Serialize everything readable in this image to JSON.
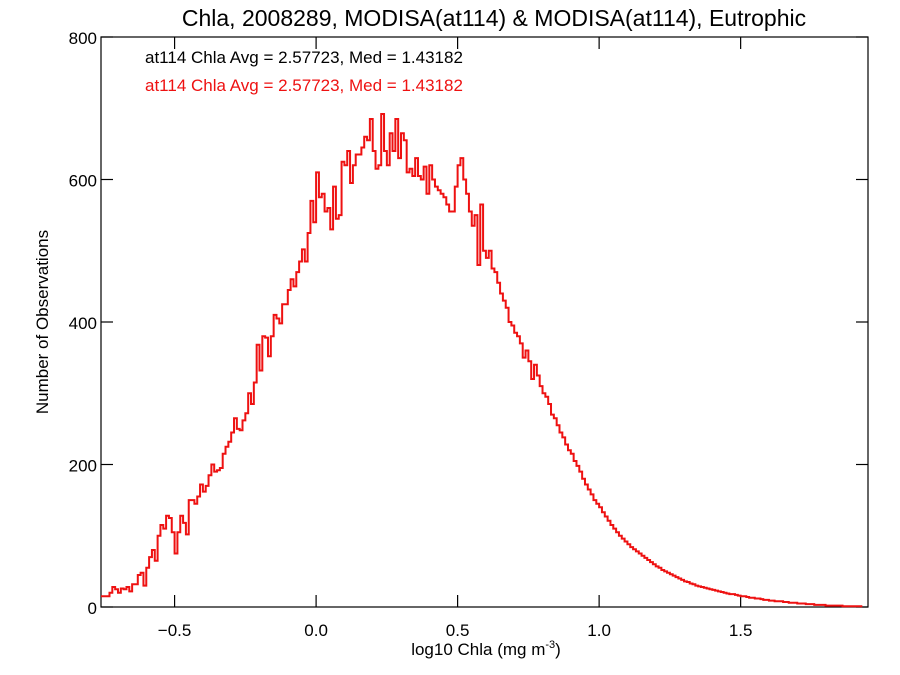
{
  "chart_data": {
    "type": "histogram",
    "title": "Chla, 2008289, MODISA(at114) & MODISA(at114), Eutrophic",
    "xlabel": "log10 Chla (mg m",
    "xlabel_sup": "-3",
    "xlabel_end": ")",
    "ylabel": "Number of Observations",
    "xlim": [
      -0.76,
      1.95
    ],
    "ylim": [
      0,
      800
    ],
    "xticks": [
      -0.5,
      0.0,
      0.5,
      1.0,
      1.5
    ],
    "xtick_labels": [
      "−0.5",
      "0.0",
      "0.5",
      "1.0",
      "1.5"
    ],
    "yticks": [
      0,
      200,
      400,
      600,
      800
    ],
    "ytick_labels": [
      "0",
      "200",
      "400",
      "600",
      "800"
    ],
    "grid": false,
    "annotations": [
      {
        "text": "at114 Chla Avg = 2.57723, Med = 1.43182",
        "color": "#000000"
      },
      {
        "text": "at114 Chla Avg = 2.57723, Med = 1.43182",
        "color": "#ee1111"
      }
    ],
    "series": [
      {
        "color": "#ee1111",
        "bin_width": 0.01,
        "bin_start": -0.76,
        "values": [
          15,
          15,
          15,
          20,
          28,
          25,
          20,
          26,
          25,
          28,
          22,
          32,
          32,
          45,
          48,
          30,
          55,
          70,
          80,
          65,
          100,
          115,
          110,
          128,
          125,
          105,
          75,
          105,
          128,
          118,
          102,
          150,
          150,
          145,
          155,
          172,
          162,
          170,
          185,
          200,
          190,
          192,
          195,
          215,
          225,
          232,
          245,
          265,
          250,
          248,
          262,
          272,
          300,
          285,
          315,
          368,
          332,
          380,
          378,
          352,
          380,
          410,
          405,
          398,
          425,
          425,
          445,
          460,
          450,
          470,
          485,
          502,
          485,
          525,
          570,
          540,
          610,
          575,
          580,
          555,
          560,
          530,
          590,
          545,
          550,
          625,
          620,
          640,
          595,
          620,
          635,
          635,
          645,
          660,
          655,
          685,
          640,
          615,
          620,
          692,
          640,
          620,
          665,
          640,
          685,
          630,
          665,
          655,
          610,
          615,
          605,
          630,
          605,
          600,
          618,
          580,
          620,
          600,
          590,
          585,
          580,
          575,
          565,
          555,
          555,
          590,
          620,
          630,
          600,
          580,
          555,
          535,
          550,
          480,
          565,
          500,
          490,
          500,
          475,
          470,
          455,
          440,
          430,
          420,
          400,
          395,
          385,
          380,
          370,
          350,
          360,
          345,
          320,
          340,
          325,
          310,
          300,
          295,
          285,
          270,
          265,
          255,
          245,
          238,
          228,
          220,
          215,
          205,
          198,
          190,
          180,
          172,
          165,
          158,
          150,
          145,
          140,
          133,
          127,
          121,
          115,
          110,
          105,
          100,
          96,
          92,
          88,
          84,
          81,
          78,
          75,
          72,
          69,
          66,
          63,
          60,
          57,
          55,
          52,
          50,
          48,
          46,
          44,
          42,
          40,
          38,
          36,
          35,
          33,
          32,
          30,
          29,
          28,
          27,
          26,
          25,
          24,
          23,
          22,
          21,
          20,
          19,
          18,
          18,
          17,
          16,
          15,
          15,
          14,
          13,
          13,
          12,
          12,
          11,
          10,
          10,
          9,
          9,
          8,
          8,
          8,
          7,
          7,
          6,
          6,
          6,
          5,
          5,
          5,
          4,
          4,
          4,
          3,
          3,
          3,
          3,
          2,
          2,
          2,
          2,
          2,
          2,
          1,
          1,
          1,
          1,
          1,
          1,
          1
        ]
      }
    ]
  }
}
